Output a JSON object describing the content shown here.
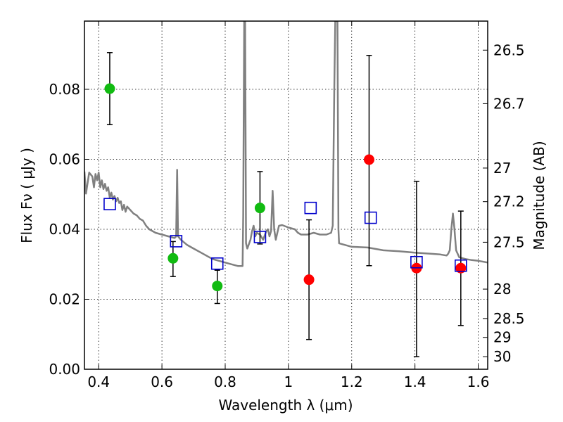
{
  "chart_data": {
    "type": "scatter",
    "title": "",
    "xlabel": "Wavelength  λ (μm)",
    "ylabel": "Flux  Fν  ( μJy )",
    "ylabel_right": "Magnitude (AB)",
    "xlim": [
      0.355,
      1.63
    ],
    "ylim": [
      0.0,
      0.0995
    ],
    "grid": true,
    "x_ticks": [
      0.4,
      0.6,
      0.8,
      1.0,
      1.2,
      1.4,
      1.6
    ],
    "x_tick_labels": [
      "0.4",
      "0.6",
      "0.8",
      "1",
      "1.2",
      "1.4",
      "1.6"
    ],
    "y_ticks": [
      0.0,
      0.02,
      0.04,
      0.06,
      0.08
    ],
    "y_tick_labels": [
      "0.00",
      "0.02",
      "0.04",
      "0.06",
      "0.08"
    ],
    "right_ticks": [
      {
        "label": "26.5",
        "flux": 0.0912
      },
      {
        "label": "26.7",
        "flux": 0.0759
      },
      {
        "label": "27",
        "flux": 0.0575
      },
      {
        "label": "27.2",
        "flux": 0.0479
      },
      {
        "label": "27.5",
        "flux": 0.0363
      },
      {
        "label": "28",
        "flux": 0.0229
      },
      {
        "label": "28.5",
        "flux": 0.0145
      },
      {
        "label": "29",
        "flux": 0.0091
      },
      {
        "label": "30",
        "flux": 0.0036
      }
    ],
    "colors": {
      "green": "#11bb11",
      "red": "#ff0000",
      "model_box": "#0000cc",
      "sed": "#808080",
      "errorbar": "#000000"
    },
    "series": [
      {
        "marker": "circle",
        "color": "green",
        "points": [
          {
            "x": 0.435,
            "y": 0.0802,
            "err_lo": 0.0699,
            "err_hi": 0.0905
          },
          {
            "x": 0.635,
            "y": 0.0317,
            "err_lo": 0.0265,
            "err_hi": 0.0365
          },
          {
            "x": 0.775,
            "y": 0.0238,
            "err_lo": 0.0188,
            "err_hi": 0.0283
          },
          {
            "x": 0.91,
            "y": 0.0461,
            "err_lo": 0.0358,
            "err_hi": 0.0565
          }
        ]
      },
      {
        "marker": "circle",
        "color": "red",
        "points": [
          {
            "x": 1.065,
            "y": 0.0256,
            "err_lo": 0.0085,
            "err_hi": 0.0427
          },
          {
            "x": 1.255,
            "y": 0.0599,
            "err_lo": 0.0296,
            "err_hi": 0.0897
          },
          {
            "x": 1.405,
            "y": 0.0289,
            "err_lo": 0.0036,
            "err_hi": 0.0537
          },
          {
            "x": 1.545,
            "y": 0.0289,
            "err_lo": 0.0125,
            "err_hi": 0.0452
          }
        ]
      },
      {
        "marker": "square",
        "color": "model_box",
        "points": [
          {
            "x": 0.435,
            "y": 0.0472
          },
          {
            "x": 0.645,
            "y": 0.0366
          },
          {
            "x": 0.775,
            "y": 0.0302
          },
          {
            "x": 0.91,
            "y": 0.0378
          },
          {
            "x": 1.07,
            "y": 0.0461
          },
          {
            "x": 1.26,
            "y": 0.0433
          },
          {
            "x": 1.405,
            "y": 0.0306
          },
          {
            "x": 1.545,
            "y": 0.0296
          }
        ]
      },
      {
        "marker": "line",
        "color": "sed",
        "points": [
          [
            0.355,
            0.0565
          ],
          [
            0.36,
            0.0502
          ],
          [
            0.37,
            0.0562
          ],
          [
            0.38,
            0.0551
          ],
          [
            0.385,
            0.052
          ],
          [
            0.39,
            0.0558
          ],
          [
            0.395,
            0.054
          ],
          [
            0.4,
            0.0562
          ],
          [
            0.405,
            0.052
          ],
          [
            0.41,
            0.054
          ],
          [
            0.415,
            0.0515
          ],
          [
            0.42,
            0.053
          ],
          [
            0.425,
            0.051
          ],
          [
            0.43,
            0.052
          ],
          [
            0.435,
            0.049
          ],
          [
            0.44,
            0.0505
          ],
          [
            0.445,
            0.0485
          ],
          [
            0.45,
            0.0495
          ],
          [
            0.455,
            0.048
          ],
          [
            0.46,
            0.049
          ],
          [
            0.465,
            0.0475
          ],
          [
            0.47,
            0.048
          ],
          [
            0.475,
            0.0455
          ],
          [
            0.48,
            0.047
          ],
          [
            0.485,
            0.045
          ],
          [
            0.49,
            0.0465
          ],
          [
            0.5,
            0.0455
          ],
          [
            0.51,
            0.0445
          ],
          [
            0.52,
            0.044
          ],
          [
            0.53,
            0.043
          ],
          [
            0.54,
            0.0425
          ],
          [
            0.55,
            0.041
          ],
          [
            0.56,
            0.04
          ],
          [
            0.57,
            0.0395
          ],
          [
            0.58,
            0.039
          ],
          [
            0.6,
            0.0385
          ],
          [
            0.62,
            0.038
          ],
          [
            0.64,
            0.0375
          ],
          [
            0.645,
            0.038
          ],
          [
            0.648,
            0.057
          ],
          [
            0.651,
            0.038
          ],
          [
            0.66,
            0.037
          ],
          [
            0.68,
            0.0355
          ],
          [
            0.7,
            0.0345
          ],
          [
            0.72,
            0.0335
          ],
          [
            0.74,
            0.0325
          ],
          [
            0.76,
            0.0315
          ],
          [
            0.78,
            0.031
          ],
          [
            0.8,
            0.0305
          ],
          [
            0.82,
            0.03
          ],
          [
            0.84,
            0.0295
          ],
          [
            0.855,
            0.0295
          ],
          [
            0.857,
            0.044
          ],
          [
            0.86,
            0.0995
          ],
          [
            0.863,
            0.0995
          ],
          [
            0.866,
            0.036
          ],
          [
            0.87,
            0.0345
          ],
          [
            0.88,
            0.037
          ],
          [
            0.885,
            0.0395
          ],
          [
            0.89,
            0.041
          ],
          [
            0.895,
            0.038
          ],
          [
            0.9,
            0.039
          ],
          [
            0.91,
            0.0385
          ],
          [
            0.92,
            0.037
          ],
          [
            0.93,
            0.0395
          ],
          [
            0.935,
            0.04
          ],
          [
            0.94,
            0.038
          ],
          [
            0.945,
            0.0395
          ],
          [
            0.95,
            0.051
          ],
          [
            0.955,
            0.04
          ],
          [
            0.96,
            0.037
          ],
          [
            0.965,
            0.039
          ],
          [
            0.97,
            0.041
          ],
          [
            0.98,
            0.0412
          ],
          [
            1.0,
            0.0405
          ],
          [
            1.02,
            0.04
          ],
          [
            1.03,
            0.039
          ],
          [
            1.04,
            0.0385
          ],
          [
            1.06,
            0.0385
          ],
          [
            1.08,
            0.039
          ],
          [
            1.1,
            0.0385
          ],
          [
            1.12,
            0.0385
          ],
          [
            1.135,
            0.039
          ],
          [
            1.14,
            0.041
          ],
          [
            1.145,
            0.08
          ],
          [
            1.148,
            0.0995
          ],
          [
            1.155,
            0.0995
          ],
          [
            1.158,
            0.04
          ],
          [
            1.16,
            0.036
          ],
          [
            1.18,
            0.0355
          ],
          [
            1.2,
            0.035
          ],
          [
            1.25,
            0.0348
          ],
          [
            1.3,
            0.034
          ],
          [
            1.35,
            0.0337
          ],
          [
            1.4,
            0.0333
          ],
          [
            1.45,
            0.033
          ],
          [
            1.48,
            0.0328
          ],
          [
            1.5,
            0.0325
          ],
          [
            1.505,
            0.033
          ],
          [
            1.51,
            0.034
          ],
          [
            1.515,
            0.04
          ],
          [
            1.52,
            0.0445
          ],
          [
            1.525,
            0.04
          ],
          [
            1.53,
            0.034
          ],
          [
            1.54,
            0.032
          ],
          [
            1.56,
            0.0315
          ],
          [
            1.58,
            0.0312
          ],
          [
            1.6,
            0.031
          ],
          [
            1.63,
            0.0305
          ]
        ]
      }
    ]
  }
}
